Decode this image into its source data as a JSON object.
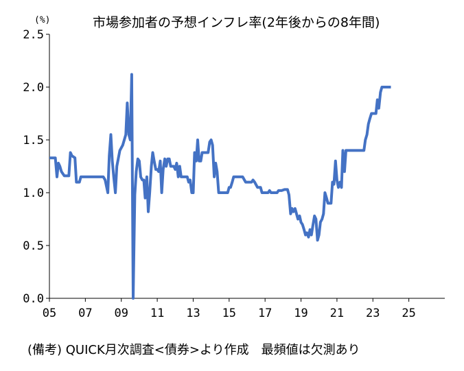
{
  "chart_data": {
    "type": "line",
    "title": "市場参加者の予想インフレ率(2年後からの8年間)",
    "unit": "(%)",
    "source": "(備考) QUICK月次調査<債券>より作成　最頻値は欠測あり",
    "xlim": [
      2005.0,
      2027.0
    ],
    "ylim": [
      0.0,
      2.5
    ],
    "x_ticks": [
      {
        "value": 2005,
        "label": "05"
      },
      {
        "value": 2007,
        "label": "07"
      },
      {
        "value": 2009,
        "label": "09"
      },
      {
        "value": 2011,
        "label": "11"
      },
      {
        "value": 2013,
        "label": "13"
      },
      {
        "value": 2015,
        "label": "15"
      },
      {
        "value": 2017,
        "label": "17"
      },
      {
        "value": 2019,
        "label": "19"
      },
      {
        "value": 2021,
        "label": "21"
      },
      {
        "value": 2023,
        "label": "23"
      },
      {
        "value": 2025,
        "label": "25"
      }
    ],
    "y_ticks": [
      {
        "value": 0.0,
        "label": "0.0"
      },
      {
        "value": 0.5,
        "label": "0.5"
      },
      {
        "value": 1.0,
        "label": "1.0"
      },
      {
        "value": 1.5,
        "label": "1.5"
      },
      {
        "value": 2.0,
        "label": "2.0"
      },
      {
        "value": 2.5,
        "label": "2.5"
      }
    ],
    "grid": false,
    "line_color": "#4472C4",
    "series": [
      {
        "points": [
          [
            2005.0,
            1.33
          ],
          [
            2005.33,
            1.33
          ],
          [
            2005.42,
            1.15
          ],
          [
            2005.5,
            1.28
          ],
          [
            2005.58,
            1.25
          ],
          [
            2005.67,
            1.2
          ],
          [
            2005.83,
            1.16
          ],
          [
            2006.08,
            1.16
          ],
          [
            2006.17,
            1.38
          ],
          [
            2006.25,
            1.35
          ],
          [
            2006.42,
            1.33
          ],
          [
            2006.5,
            1.1
          ],
          [
            2006.67,
            1.1
          ],
          [
            2006.75,
            1.15
          ],
          [
            2007.0,
            1.15
          ],
          [
            2007.5,
            1.15
          ],
          [
            2008.0,
            1.15
          ],
          [
            2008.1,
            1.12
          ],
          [
            2008.25,
            1.0
          ],
          [
            2008.33,
            1.35
          ],
          [
            2008.42,
            1.55
          ],
          [
            2008.5,
            1.3
          ],
          [
            2008.58,
            1.15
          ],
          [
            2008.67,
            1.0
          ],
          [
            2008.75,
            1.25
          ],
          [
            2008.92,
            1.4
          ],
          [
            2009.08,
            1.45
          ],
          [
            2009.25,
            1.55
          ],
          [
            2009.33,
            1.85
          ],
          [
            2009.42,
            1.55
          ],
          [
            2009.5,
            1.5
          ],
          [
            2009.58,
            2.12
          ],
          [
            2009.66,
            0.0
          ],
          [
            2009.75,
            0.98
          ],
          [
            2009.83,
            1.2
          ],
          [
            2009.92,
            1.32
          ],
          [
            2010.0,
            1.3
          ],
          [
            2010.08,
            1.15
          ],
          [
            2010.17,
            1.12
          ],
          [
            2010.25,
            1.12
          ],
          [
            2010.33,
            0.95
          ],
          [
            2010.42,
            1.15
          ],
          [
            2010.5,
            0.82
          ],
          [
            2010.58,
            1.0
          ],
          [
            2010.67,
            1.25
          ],
          [
            2010.75,
            1.38
          ],
          [
            2010.83,
            1.3
          ],
          [
            2010.92,
            1.22
          ],
          [
            2011.0,
            1.22
          ],
          [
            2011.08,
            1.2
          ],
          [
            2011.17,
            1.3
          ],
          [
            2011.25,
            1.0
          ],
          [
            2011.33,
            1.22
          ],
          [
            2011.42,
            1.32
          ],
          [
            2011.5,
            1.25
          ],
          [
            2011.58,
            1.32
          ],
          [
            2011.67,
            1.32
          ],
          [
            2011.75,
            1.25
          ],
          [
            2011.92,
            1.25
          ],
          [
            2012.0,
            1.22
          ],
          [
            2012.08,
            1.28
          ],
          [
            2012.17,
            1.15
          ],
          [
            2012.25,
            1.25
          ],
          [
            2012.33,
            1.15
          ],
          [
            2012.5,
            1.15
          ],
          [
            2012.67,
            1.15
          ],
          [
            2012.75,
            1.1
          ],
          [
            2012.83,
            1.12
          ],
          [
            2012.92,
            1.0
          ],
          [
            2013.0,
            1.0
          ],
          [
            2013.08,
            1.38
          ],
          [
            2013.17,
            1.3
          ],
          [
            2013.25,
            1.5
          ],
          [
            2013.33,
            1.3
          ],
          [
            2013.42,
            1.3
          ],
          [
            2013.5,
            1.38
          ],
          [
            2013.58,
            1.38
          ],
          [
            2013.67,
            1.38
          ],
          [
            2013.83,
            1.38
          ],
          [
            2013.92,
            1.48
          ],
          [
            2014.0,
            1.5
          ],
          [
            2014.08,
            1.45
          ],
          [
            2014.17,
            1.15
          ],
          [
            2014.25,
            1.28
          ],
          [
            2014.33,
            1.2
          ],
          [
            2014.42,
            1.0
          ],
          [
            2014.58,
            1.0
          ],
          [
            2014.75,
            1.0
          ],
          [
            2014.92,
            1.0
          ],
          [
            2015.0,
            1.05
          ],
          [
            2015.08,
            1.05
          ],
          [
            2015.17,
            1.1
          ],
          [
            2015.25,
            1.15
          ],
          [
            2015.5,
            1.15
          ],
          [
            2015.75,
            1.15
          ],
          [
            2015.92,
            1.1
          ],
          [
            2016.08,
            1.1
          ],
          [
            2016.25,
            1.1
          ],
          [
            2016.33,
            1.12
          ],
          [
            2016.42,
            1.1
          ],
          [
            2016.58,
            1.05
          ],
          [
            2016.75,
            1.05
          ],
          [
            2016.83,
            1.0
          ],
          [
            2017.0,
            1.0
          ],
          [
            2017.17,
            1.0
          ],
          [
            2017.25,
            1.02
          ],
          [
            2017.33,
            1.0
          ],
          [
            2017.5,
            1.0
          ],
          [
            2017.67,
            1.0
          ],
          [
            2017.75,
            1.02
          ],
          [
            2017.92,
            1.02
          ],
          [
            2018.08,
            1.03
          ],
          [
            2018.25,
            1.03
          ],
          [
            2018.33,
            0.98
          ],
          [
            2018.42,
            0.8
          ],
          [
            2018.5,
            0.85
          ],
          [
            2018.58,
            0.82
          ],
          [
            2018.67,
            0.85
          ],
          [
            2018.75,
            0.8
          ],
          [
            2018.83,
            0.75
          ],
          [
            2018.92,
            0.78
          ],
          [
            2019.0,
            0.72
          ],
          [
            2019.08,
            0.7
          ],
          [
            2019.17,
            0.65
          ],
          [
            2019.25,
            0.6
          ],
          [
            2019.33,
            0.62
          ],
          [
            2019.42,
            0.58
          ],
          [
            2019.5,
            0.65
          ],
          [
            2019.58,
            0.6
          ],
          [
            2019.67,
            0.7
          ],
          [
            2019.75,
            0.78
          ],
          [
            2019.83,
            0.75
          ],
          [
            2019.92,
            0.55
          ],
          [
            2020.0,
            0.6
          ],
          [
            2020.08,
            0.72
          ],
          [
            2020.17,
            0.75
          ],
          [
            2020.25,
            0.8
          ],
          [
            2020.33,
            1.0
          ],
          [
            2020.42,
            0.95
          ],
          [
            2020.5,
            0.9
          ],
          [
            2020.58,
            0.9
          ],
          [
            2020.67,
            0.9
          ],
          [
            2020.75,
            1.1
          ],
          [
            2020.83,
            1.08
          ],
          [
            2020.92,
            1.3
          ],
          [
            2021.0,
            1.12
          ],
          [
            2021.08,
            1.05
          ],
          [
            2021.17,
            1.1
          ],
          [
            2021.25,
            1.05
          ],
          [
            2021.33,
            1.4
          ],
          [
            2021.42,
            1.2
          ],
          [
            2021.5,
            1.4
          ],
          [
            2021.67,
            1.4
          ],
          [
            2021.83,
            1.4
          ],
          [
            2022.0,
            1.4
          ],
          [
            2022.17,
            1.4
          ],
          [
            2022.33,
            1.4
          ],
          [
            2022.5,
            1.4
          ],
          [
            2022.58,
            1.5
          ],
          [
            2022.67,
            1.55
          ],
          [
            2022.75,
            1.65
          ],
          [
            2022.83,
            1.7
          ],
          [
            2022.92,
            1.75
          ],
          [
            2023.0,
            1.75
          ],
          [
            2023.08,
            1.75
          ],
          [
            2023.17,
            1.75
          ],
          [
            2023.25,
            1.88
          ],
          [
            2023.33,
            1.8
          ],
          [
            2023.42,
            1.95
          ],
          [
            2023.5,
            2.0
          ],
          [
            2023.67,
            2.0
          ],
          [
            2023.83,
            2.0
          ],
          [
            2024.0,
            2.0
          ]
        ]
      }
    ]
  }
}
